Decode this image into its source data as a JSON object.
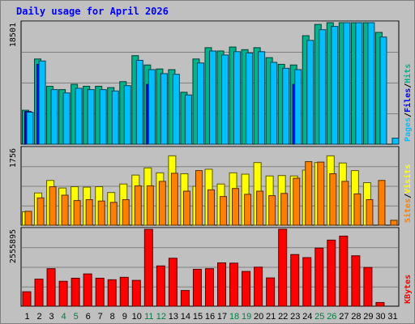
{
  "chart_data": {
    "type": "bar",
    "title": "Daily usage for April 2026",
    "colors": {
      "hits": "#00b38d",
      "files": "#0000ff",
      "pages": "#00bfff",
      "visits": "#ffff00",
      "sites": "#ff8000",
      "kbytes": "#ff0000",
      "weekend_day_label": "#008040",
      "weekday_day_label": "#000000"
    },
    "x": [
      "1",
      "2",
      "3",
      "4",
      "5",
      "6",
      "7",
      "8",
      "9",
      "10",
      "11",
      "12",
      "13",
      "14",
      "15",
      "16",
      "17",
      "18",
      "19",
      "20",
      "21",
      "22",
      "23",
      "24",
      "25",
      "26",
      "27",
      "28",
      "29",
      "30",
      "31"
    ],
    "weekend_days": [
      "4",
      "5",
      "11",
      "12",
      "18",
      "19",
      "25",
      "26"
    ],
    "panels": [
      {
        "id": "top",
        "ytick_max": "18501",
        "ymax": 18501,
        "side_labels": [
          "Pages",
          "/",
          "Files",
          "/",
          "Hits"
        ],
        "series": [
          {
            "name": "Hits",
            "values": [
              5100,
              12800,
              8700,
              8200,
              9000,
              8700,
              8700,
              8500,
              9400,
              13300,
              11900,
              11300,
              11200,
              7800,
              12800,
              14500,
              14000,
              14600,
              14200,
              14500,
              13000,
              12000,
              11900,
              16300,
              18000,
              19300,
              24600,
              27600,
              20000,
              16800,
              null
            ]
          },
          {
            "name": "Files",
            "values": [
              4900,
              12000,
              null,
              null,
              null,
              null,
              null,
              null,
              null,
              null,
              9000,
              null,
              null,
              null,
              null,
              null,
              null,
              null,
              null,
              null,
              null,
              null,
              9000,
              null,
              null,
              null,
              null,
              null,
              null,
              null,
              null
            ]
          },
          {
            "name": "Pages",
            "values": [
              4800,
              12500,
              8200,
              7700,
              8400,
              8200,
              8200,
              8000,
              8800,
              12600,
              11200,
              10600,
              10500,
              7400,
              12200,
              14000,
              13400,
              13900,
              13700,
              13900,
              12300,
              11400,
              11200,
              15600,
              17200,
              17700,
              22700,
              26600,
              19400,
              16100,
              900
            ]
          }
        ]
      },
      {
        "id": "middle",
        "ytick_max": "1756",
        "ymax": 1756,
        "side_labels": [
          "Sites",
          "/",
          "Visits"
        ],
        "series": [
          {
            "name": "Visits",
            "values": [
              300,
              720,
              1000,
              830,
              860,
              850,
              860,
              730,
              920,
              1120,
              1280,
              1170,
              1550,
              1150,
              870,
              1250,
              920,
              1170,
              1140,
              1400,
              1100,
              1110,
              1100,
              1230,
              1400,
              1550,
              1390,
              1220,
              950,
              null,
              null
            ]
          },
          {
            "name": "Sites",
            "values": [
              310,
              610,
              860,
              670,
              550,
              570,
              540,
              510,
              570,
              880,
              880,
              980,
              1160,
              760,
              1220,
              790,
              640,
              820,
              690,
              760,
              660,
              710,
              1050,
              1420,
              1410,
              1150,
              980,
              700,
              570,
              1000,
              110
            ]
          }
        ]
      },
      {
        "id": "bottom",
        "ytick_max": "2555895",
        "ymax": 2555895,
        "side_labels": [
          "KBytes"
        ],
        "series": [
          {
            "name": "KBytes",
            "values": [
              470000,
              880000,
              1220000,
              810000,
              910000,
              1050000,
              910000,
              860000,
              940000,
              840000,
              2500000,
              1310000,
              1560000,
              510000,
              1200000,
              1220000,
              1410000,
              1400000,
              1130000,
              1270000,
              920000,
              2850000,
              1680000,
              1580000,
              1890000,
              2150000,
              2280000,
              1640000,
              1260000,
              120000,
              null
            ]
          }
        ]
      }
    ]
  }
}
